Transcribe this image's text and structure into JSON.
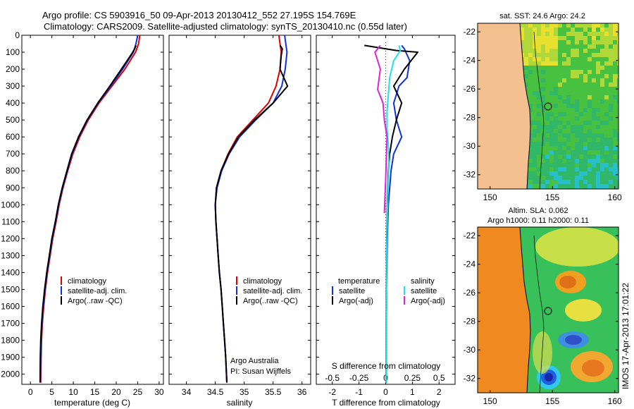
{
  "title_line1": "Argo profile: CS 5903916_50 09-Apr-2013 20130412_552 27.195S 154.769E",
  "title_line2": "Climatology: CARS2009. Satellite-adjusted climatology: synTS_20130410.nc (0.55d later)",
  "side_stamp": "IMOS 17-Apr-2013 17:01:22",
  "colors": {
    "climatology": "#e00000",
    "satellite": "#1030e0",
    "argo": "#000000",
    "sal_satellite": "#20e0e8",
    "sal_argo": "#e020e0"
  },
  "chart_data": [
    {
      "type": "line",
      "panel": "temperature",
      "xlabel": "temperature (deg C)",
      "ylabel": "",
      "xlim": [
        -2,
        31
      ],
      "ylim": [
        2060,
        0
      ],
      "xticks": [
        0,
        5,
        10,
        15,
        20,
        25,
        30
      ],
      "yticks": [
        0,
        100,
        200,
        300,
        400,
        500,
        600,
        700,
        800,
        900,
        1000,
        1100,
        1200,
        1300,
        1400,
        1500,
        1600,
        1700,
        1800,
        1900,
        2000
      ],
      "legend_position": "lower-center",
      "legend": [
        "climatology",
        "satellite-adj. clim.",
        "Argo(..raw -QC)"
      ],
      "series": [
        {
          "name": "climatology",
          "color_key": "climatology",
          "x": [
            25.5,
            25.2,
            24.5,
            22.0,
            19.0,
            16.0,
            13.5,
            11.5,
            9.9,
            8.7,
            7.6,
            6.7,
            6.0,
            5.2,
            4.6,
            4.0,
            3.5,
            3.1,
            2.8,
            2.6,
            2.5,
            2.4
          ],
          "y": [
            0,
            50,
            100,
            200,
            300,
            400,
            500,
            600,
            700,
            800,
            900,
            1000,
            1100,
            1200,
            1300,
            1400,
            1500,
            1600,
            1700,
            1800,
            1900,
            2050
          ]
        },
        {
          "name": "satellite-adj. clim.",
          "color_key": "satellite",
          "x": [
            25.0,
            24.6,
            24.0,
            21.5,
            18.7,
            15.8,
            13.3,
            11.3,
            9.7,
            8.6,
            7.5,
            6.6,
            5.9,
            5.1,
            4.5,
            3.9,
            3.4,
            3.0,
            2.7,
            2.5,
            2.4,
            2.3
          ],
          "y": [
            0,
            50,
            100,
            200,
            300,
            400,
            500,
            600,
            700,
            800,
            900,
            1000,
            1100,
            1200,
            1300,
            1400,
            1500,
            1600,
            1700,
            1800,
            1900,
            2050
          ]
        },
        {
          "name": "Argo(..raw -QC)",
          "color_key": "argo",
          "x": [
            24.6,
            24.3,
            23.6,
            21.2,
            18.5,
            15.7,
            13.2,
            11.2,
            9.6,
            8.5,
            7.4,
            6.5,
            5.8,
            5.0,
            4.4,
            3.8,
            3.3,
            2.9,
            2.6,
            2.4,
            2.3,
            2.25
          ],
          "y": [
            60,
            80,
            110,
            200,
            300,
            400,
            500,
            600,
            700,
            800,
            900,
            1000,
            1100,
            1200,
            1300,
            1400,
            1500,
            1600,
            1700,
            1800,
            1900,
            2050
          ]
        }
      ]
    },
    {
      "type": "line",
      "panel": "salinity",
      "xlabel": "salinity",
      "xlim": [
        33.7,
        36.15
      ],
      "ylim": [
        2060,
        0
      ],
      "xticks": [
        34,
        34.5,
        35,
        35.5,
        36
      ],
      "legend_position": "lower-center",
      "legend": [
        "climatology",
        "satellite-adj. clim.",
        "Argo(..raw -QC)"
      ],
      "annotation": [
        "Argo Australia",
        "PI: Susan Wijffels"
      ],
      "series": [
        {
          "name": "climatology",
          "color_key": "climatology",
          "x": [
            35.6,
            35.62,
            35.64,
            35.62,
            35.55,
            35.42,
            35.15,
            34.88,
            34.72,
            34.6,
            34.52,
            34.5,
            34.51,
            34.53,
            34.55,
            34.57,
            34.6,
            34.62,
            34.64,
            34.66,
            34.68,
            34.7
          ],
          "y": [
            0,
            50,
            100,
            200,
            300,
            400,
            500,
            600,
            700,
            800,
            900,
            1000,
            1100,
            1200,
            1300,
            1400,
            1500,
            1600,
            1700,
            1800,
            1900,
            2050
          ]
        },
        {
          "name": "satellite-adj. clim.",
          "color_key": "satellite",
          "x": [
            35.7,
            35.72,
            35.74,
            35.71,
            35.65,
            35.5,
            35.2,
            34.92,
            34.74,
            34.61,
            34.53,
            34.5,
            34.51,
            34.53,
            34.55,
            34.57,
            34.6,
            34.62,
            34.64,
            34.66,
            34.68,
            34.7
          ],
          "y": [
            0,
            50,
            100,
            200,
            300,
            400,
            500,
            600,
            700,
            800,
            900,
            1000,
            1100,
            1200,
            1300,
            1400,
            1500,
            1600,
            1700,
            1800,
            1900,
            2050
          ]
        },
        {
          "name": "Argo(..raw -QC)",
          "color_key": "argo",
          "x": [
            35.62,
            35.66,
            35.64,
            35.62,
            35.75,
            35.5,
            35.18,
            34.9,
            34.73,
            34.6,
            34.52,
            34.5,
            34.51,
            34.53,
            34.55,
            34.57,
            34.6,
            34.62,
            34.64,
            34.66,
            34.68,
            34.7
          ],
          "y": [
            60,
            80,
            120,
            200,
            300,
            400,
            500,
            600,
            700,
            800,
            900,
            1000,
            1100,
            1200,
            1300,
            1400,
            1500,
            1600,
            1700,
            1800,
            1900,
            2050
          ]
        }
      ]
    },
    {
      "type": "line",
      "panel": "difference",
      "xlabel": "T difference from climatology",
      "xlabel_top": "S difference from climatology",
      "xlim": [
        -2.6,
        2.6
      ],
      "ylim": [
        2060,
        0
      ],
      "xticks": [
        -2,
        -1,
        0,
        1,
        2
      ],
      "xticks_salinity": [
        {
          "label": "-0.5",
          "t": -2
        },
        {
          "label": "-0.25",
          "t": -1
        },
        {
          "label": "0",
          "t": 0
        },
        {
          "label": "0.25",
          "t": 1
        },
        {
          "label": "0.5",
          "t": 2
        }
      ],
      "legend_headers": [
        "temperature",
        "salinity"
      ],
      "legend": [
        "satellite",
        "Argo(-adj)",
        "satellite",
        "Argo(-adj)"
      ],
      "series": [
        {
          "name": "temperature satellite",
          "color_key": "satellite",
          "x": [
            0.6,
            0.7,
            0.9,
            0.8,
            0.5,
            0.3,
            0.4,
            0.6,
            0.3,
            0.2,
            0.15,
            0.1,
            0.08,
            0.06,
            0.05,
            0.04,
            0.03,
            0.03,
            0.02,
            0.02,
            0.02,
            0.02
          ],
          "y": [
            60,
            80,
            150,
            250,
            300,
            400,
            500,
            600,
            700,
            800,
            900,
            1000,
            1100,
            1200,
            1300,
            1400,
            1500,
            1600,
            1700,
            1800,
            1900,
            2050
          ]
        },
        {
          "name": "temperature Argo(-adj)",
          "color_key": "argo",
          "x": [
            -0.8,
            0.4,
            1.2,
            0.7,
            0.3,
            0.6,
            0.4,
            0.25,
            0.15,
            0.1,
            0.08,
            0.06,
            0.05,
            0.04,
            0.03,
            0.03,
            0.02,
            0.02,
            0.02,
            0.02,
            0.02,
            0.02
          ],
          "y": [
            60,
            90,
            100,
            200,
            300,
            400,
            500,
            600,
            700,
            800,
            900,
            1000,
            1100,
            1200,
            1300,
            1400,
            1500,
            1600,
            1700,
            1800,
            1900,
            2050
          ]
        },
        {
          "name": "salinity satellite",
          "color_key": "sal_satellite",
          "x": [
            0.5,
            0.55,
            0.3,
            0.15,
            0.1,
            0.05,
            0.05,
            0.1,
            0.12,
            0.1,
            0.08,
            0.06,
            0.05,
            0.04,
            0.03,
            0.03,
            0.02,
            0.02,
            0.02,
            0.02,
            0.02,
            0.02
          ],
          "y": [
            60,
            90,
            150,
            250,
            350,
            450,
            550,
            650,
            750,
            850,
            950,
            1050,
            1150,
            1250,
            1350,
            1450,
            1550,
            1650,
            1750,
            1850,
            1950,
            2050
          ]
        },
        {
          "name": "salinity Argo(-adj)",
          "color_key": "sal_argo",
          "x": [
            -0.2,
            -0.4,
            -0.3,
            -0.2,
            -0.3,
            -0.1,
            -0.05,
            0.05,
            0.03,
            0.0,
            -0.05
          ],
          "y": [
            60,
            100,
            150,
            200,
            320,
            400,
            500,
            600,
            700,
            850,
            1050
          ]
        }
      ]
    },
    {
      "type": "heatmap",
      "panel": "sst_map",
      "title": "sat. SST: 24.6 Argo: 24.2",
      "xticks": [
        150,
        155,
        160
      ],
      "yticks": [
        -22,
        -24,
        -26,
        -28,
        -30,
        -32
      ],
      "xlim": [
        149,
        160.3
      ],
      "ylim": [
        -33,
        -21.4
      ]
    },
    {
      "type": "heatmap",
      "panel": "sla_map",
      "title_line1": "Altim. SLA: 0.062",
      "title_line2": "Argo h1000: 0.11 h2000: 0.11",
      "xticks": [
        150,
        155,
        160
      ],
      "yticks": [
        -22,
        -24,
        -26,
        -28,
        -30,
        -32
      ],
      "xlim": [
        149,
        160.3
      ],
      "ylim": [
        -33,
        -21.4
      ]
    }
  ]
}
